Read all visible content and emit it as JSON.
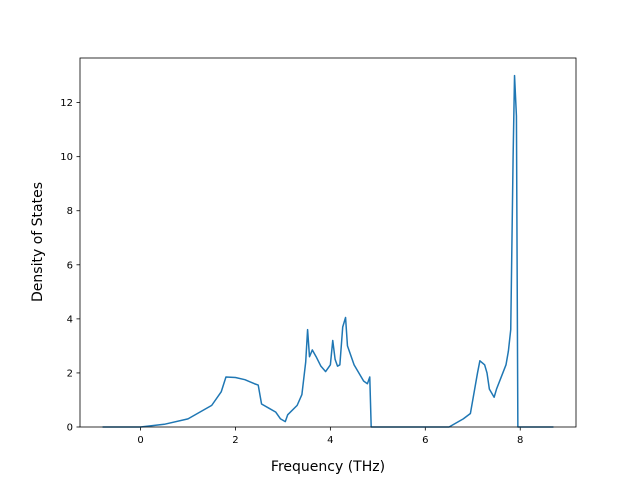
{
  "chart_data": {
    "type": "line",
    "xlabel": "Frequency (THz)",
    "ylabel": "Density of States",
    "x": [
      -0.8,
      0,
      0.5,
      1,
      1.5,
      1.7,
      1.8,
      2.0,
      2.2,
      2.4,
      2.48,
      2.55,
      2.7,
      2.85,
      2.95,
      3.05,
      3.1,
      3.3,
      3.4,
      3.48,
      3.52,
      3.56,
      3.62,
      3.7,
      3.8,
      3.9,
      4.0,
      4.05,
      4.1,
      4.15,
      4.2,
      4.26,
      4.32,
      4.36,
      4.5,
      4.7,
      4.78,
      4.83,
      4.86,
      6.5,
      6.8,
      6.95,
      7.0,
      7.1,
      7.15,
      7.25,
      7.3,
      7.35,
      7.45,
      7.5,
      7.7,
      7.75,
      7.8,
      7.85,
      7.88,
      7.92,
      7.95,
      8.7
    ],
    "series": [
      {
        "color": "#1f77b4",
        "values": [
          0,
          0,
          0.1,
          0.3,
          0.8,
          1.3,
          1.85,
          1.83,
          1.75,
          1.6,
          1.55,
          0.85,
          0.7,
          0.55,
          0.3,
          0.2,
          0.45,
          0.8,
          1.2,
          2.4,
          3.6,
          2.6,
          2.85,
          2.6,
          2.25,
          2.05,
          2.3,
          3.2,
          2.5,
          2.25,
          2.3,
          3.7,
          4.05,
          3.0,
          2.3,
          1.7,
          1.6,
          1.85,
          0,
          0,
          0.3,
          0.5,
          1.0,
          2.0,
          2.45,
          2.3,
          2.0,
          1.4,
          1.1,
          1.4,
          2.3,
          2.8,
          3.6,
          10.0,
          13.0,
          11.5,
          0,
          0
        ]
      }
    ],
    "xlim": [
      -1.275,
      9.175
    ],
    "xticks": [
      0,
      2,
      4,
      6,
      8
    ],
    "ylim": [
      0,
      13.65
    ],
    "yticks": [
      0,
      2,
      4,
      6,
      8,
      10,
      12
    ]
  }
}
